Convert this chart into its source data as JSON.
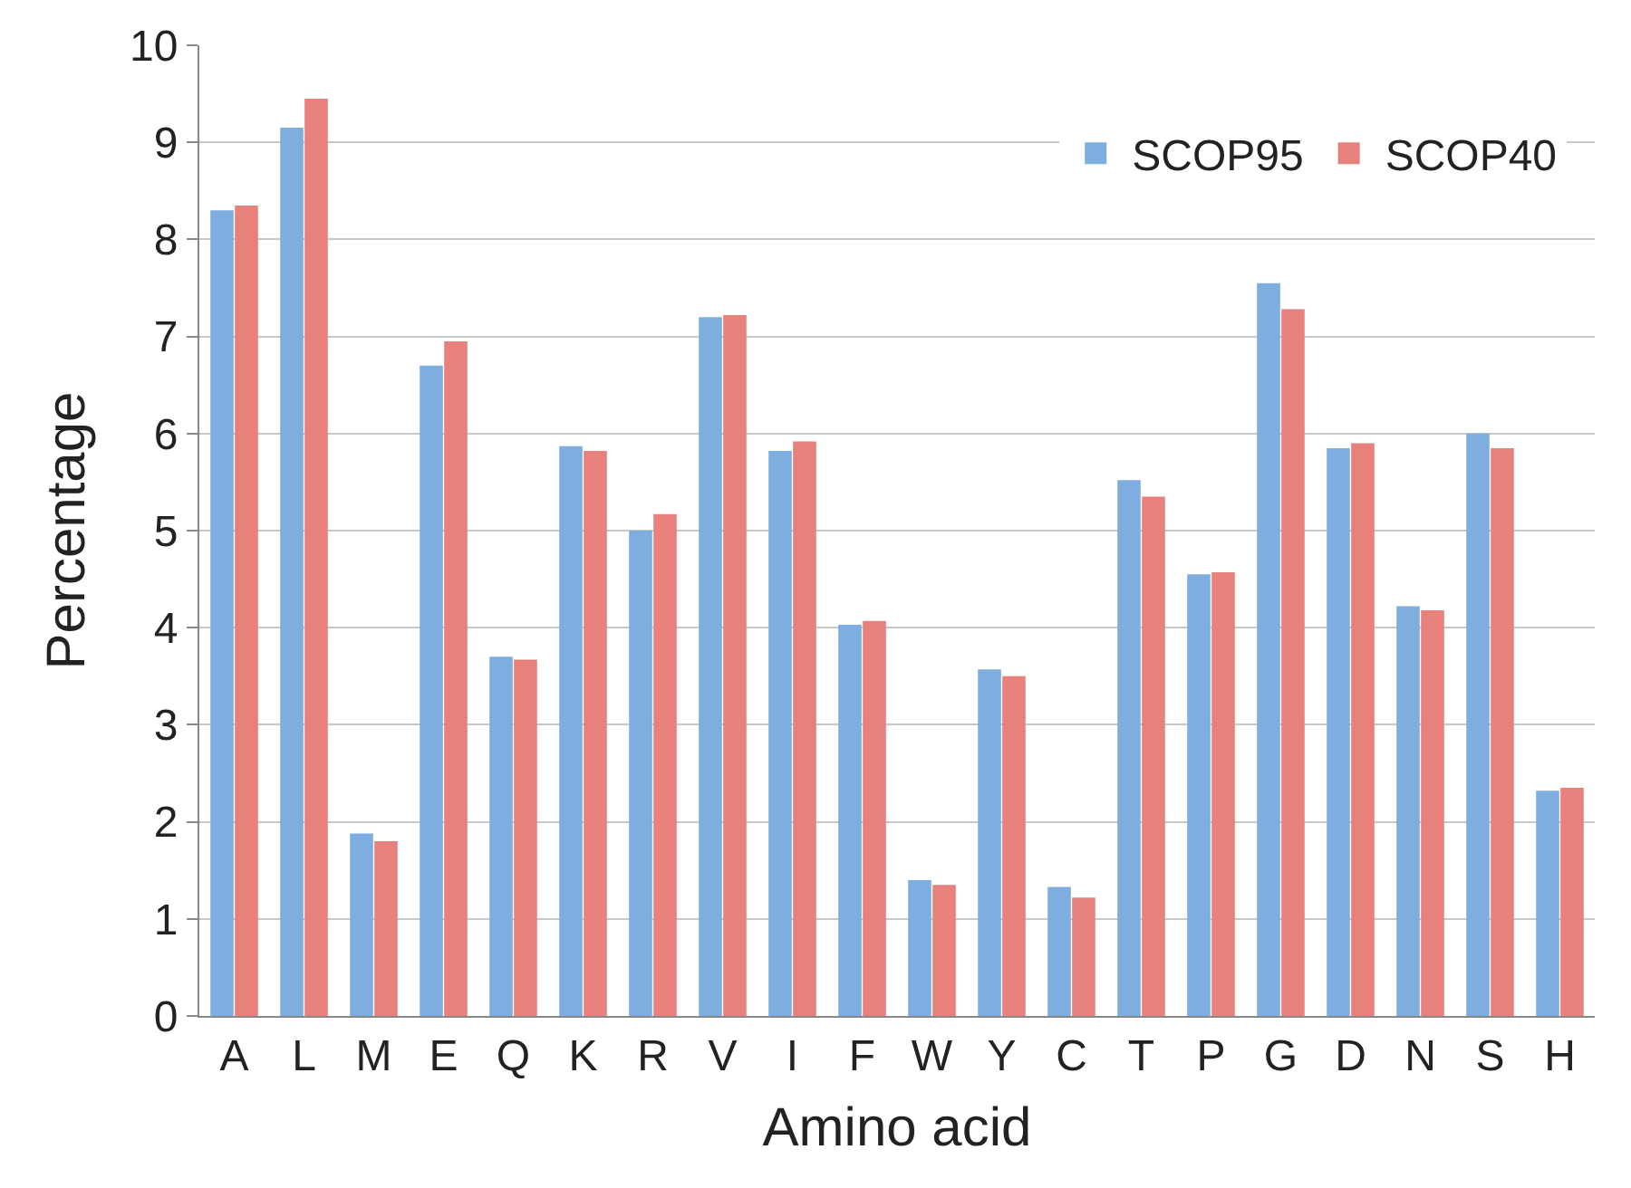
{
  "chart_data": {
    "type": "bar",
    "xlabel": "Amino acid",
    "ylabel": "Percentage",
    "categories": [
      "A",
      "L",
      "M",
      "E",
      "Q",
      "K",
      "R",
      "V",
      "I",
      "F",
      "W",
      "Y",
      "C",
      "T",
      "P",
      "G",
      "D",
      "N",
      "S",
      "H"
    ],
    "series": [
      {
        "name": "SCOP95",
        "color": "#7eaee0",
        "values": [
          8.3,
          9.15,
          1.88,
          6.7,
          3.7,
          5.87,
          5.0,
          7.2,
          5.82,
          4.03,
          1.4,
          3.57,
          1.33,
          5.52,
          4.55,
          7.55,
          5.85,
          4.22,
          6.0,
          2.32
        ]
      },
      {
        "name": "SCOP40",
        "color": "#e8807c",
        "values": [
          8.35,
          9.45,
          1.8,
          6.95,
          3.67,
          5.82,
          5.17,
          7.22,
          5.92,
          4.07,
          1.35,
          3.5,
          1.22,
          5.35,
          4.57,
          7.28,
          5.9,
          4.18,
          5.85,
          2.35
        ]
      }
    ],
    "ylim": [
      0,
      10
    ],
    "yticks": [
      0,
      1,
      2,
      3,
      4,
      5,
      6,
      7,
      8,
      9,
      10
    ],
    "grid": "y",
    "legend": "top right"
  }
}
